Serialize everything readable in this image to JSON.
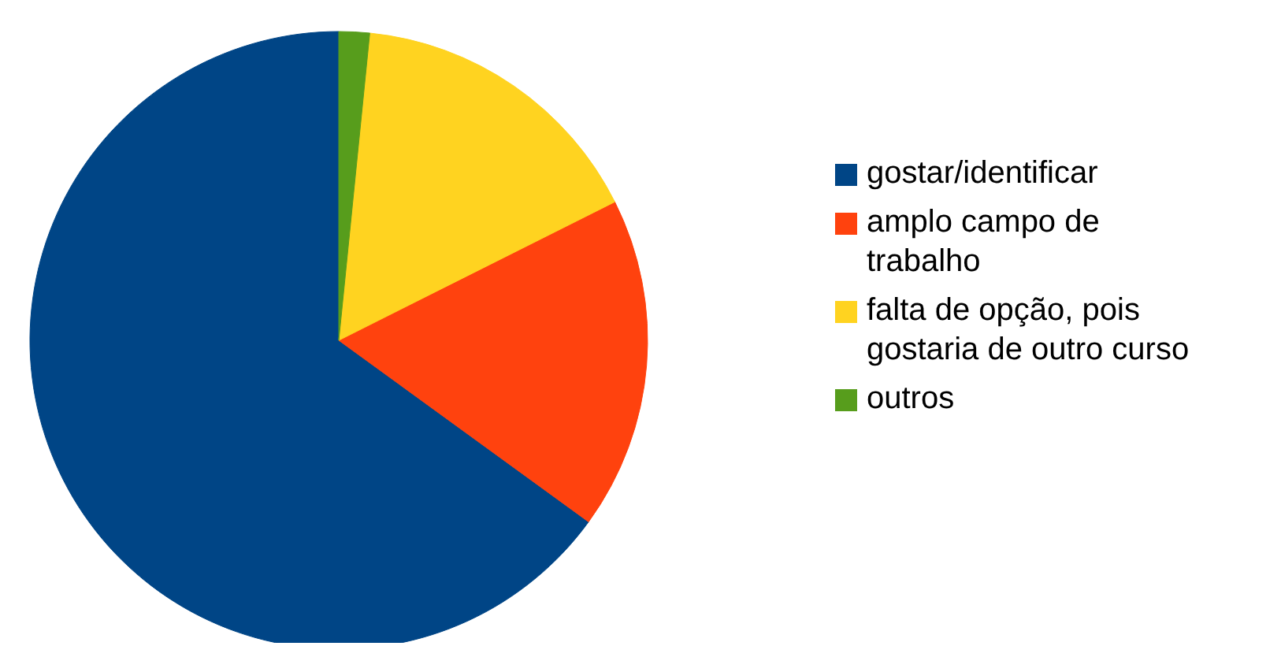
{
  "chart_data": {
    "type": "pie",
    "categories": [
      "gostar/identificar",
      "amplo campo de trabalho",
      "falta de opção, pois gostaria de outro curso",
      "outros"
    ],
    "values": [
      65,
      17.4,
      16,
      1.6
    ],
    "colors": [
      "#004586",
      "#ff420e",
      "#ffd320",
      "#579d1c"
    ],
    "legend": "right"
  }
}
